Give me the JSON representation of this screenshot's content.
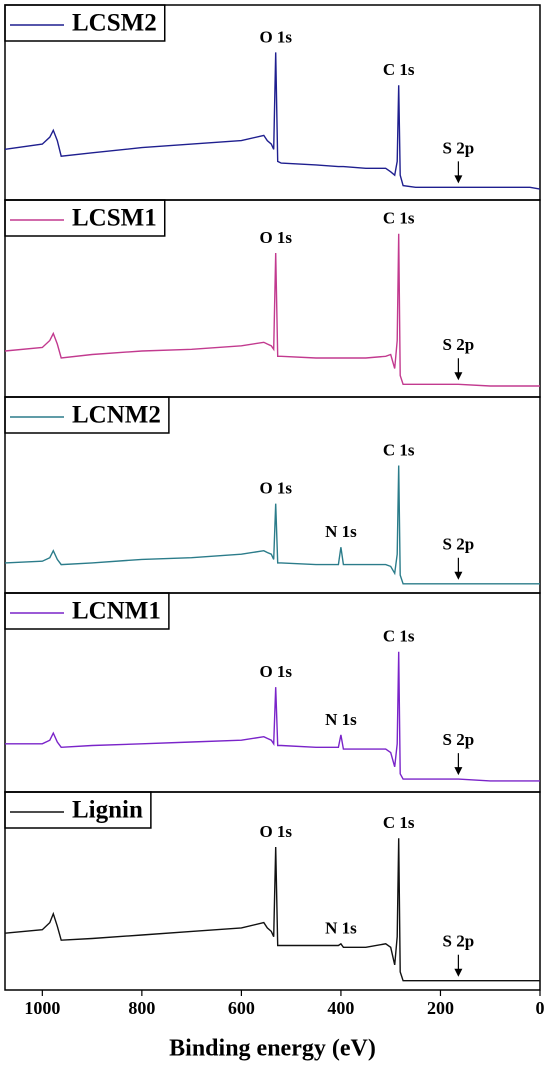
{
  "chart_data": [
    {
      "type": "line",
      "name": "LCSM2",
      "color": "#1f1f8f",
      "x": [
        1075,
        1000,
        985,
        978,
        970,
        962,
        900,
        800,
        700,
        600,
        555,
        548,
        540,
        535,
        531,
        527,
        520,
        450,
        405,
        400,
        395,
        350,
        310,
        300,
        292,
        287,
        284,
        281,
        275,
        250,
        200,
        164,
        100,
        20,
        0
      ],
      "values": [
        27,
        30,
        34,
        38,
        32,
        23,
        25,
        28,
        30,
        32,
        35,
        32,
        30,
        27,
        83,
        20,
        19,
        18,
        17,
        17,
        17,
        16,
        16,
        14,
        12,
        20,
        64,
        12,
        6,
        5,
        5,
        5,
        5,
        5,
        4
      ],
      "xlim": [
        1075,
        0
      ],
      "ylim": [
        0,
        100
      ],
      "annotations": [
        {
          "text": "O 1s",
          "x": 531
        },
        {
          "text": "C 1s",
          "x": 284
        },
        {
          "text": "S 2p",
          "x": 164,
          "arrow": true
        }
      ]
    },
    {
      "type": "line",
      "name": "LCSM1",
      "color": "#c23a8f",
      "x": [
        1075,
        1000,
        985,
        978,
        970,
        962,
        900,
        800,
        700,
        600,
        555,
        548,
        540,
        535,
        531,
        527,
        520,
        450,
        405,
        400,
        395,
        350,
        310,
        300,
        292,
        287,
        284,
        281,
        275,
        250,
        200,
        164,
        100,
        20,
        0
      ],
      "values": [
        24,
        26,
        30,
        34,
        28,
        20,
        22,
        24,
        25,
        27,
        29,
        28,
        27,
        25,
        80,
        21,
        21,
        20,
        20,
        20,
        20,
        20,
        21,
        22,
        14,
        30,
        91,
        10,
        5,
        5,
        5,
        5,
        4,
        4,
        4
      ],
      "xlim": [
        1075,
        0
      ],
      "ylim": [
        0,
        100
      ],
      "annotations": [
        {
          "text": "O 1s",
          "x": 531
        },
        {
          "text": "C 1s",
          "x": 284
        },
        {
          "text": "S 2p",
          "x": 164,
          "arrow": true
        }
      ]
    },
    {
      "type": "line",
      "name": "LCNM2",
      "color": "#2b7c8a",
      "x": [
        1075,
        1000,
        985,
        978,
        970,
        962,
        900,
        800,
        700,
        600,
        555,
        548,
        540,
        535,
        531,
        527,
        520,
        450,
        405,
        400,
        395,
        350,
        310,
        300,
        292,
        287,
        284,
        281,
        275,
        250,
        200,
        164,
        100,
        20,
        0
      ],
      "values": [
        15,
        16,
        18,
        22,
        17,
        14,
        15,
        17,
        18,
        20,
        22,
        21,
        20,
        17,
        49,
        15,
        15,
        14,
        14,
        24,
        14,
        14,
        14,
        13,
        9,
        20,
        71,
        8,
        3,
        3,
        3,
        3,
        3,
        3,
        3
      ],
      "xlim": [
        1075,
        0
      ],
      "ylim": [
        0,
        100
      ],
      "annotations": [
        {
          "text": "O 1s",
          "x": 531
        },
        {
          "text": "N 1s",
          "x": 400
        },
        {
          "text": "C 1s",
          "x": 284
        },
        {
          "text": "S 2p",
          "x": 164,
          "arrow": true
        }
      ]
    },
    {
      "type": "line",
      "name": "LCNM1",
      "color": "#7a24c9",
      "x": [
        1075,
        1000,
        985,
        978,
        970,
        962,
        900,
        800,
        700,
        600,
        555,
        548,
        540,
        535,
        531,
        527,
        520,
        450,
        405,
        400,
        395,
        350,
        310,
        300,
        292,
        287,
        284,
        281,
        275,
        250,
        200,
        164,
        100,
        20,
        0
      ],
      "values": [
        25,
        25,
        27,
        31,
        26,
        23,
        24,
        25,
        26,
        27,
        29,
        28,
        27,
        25,
        57,
        24,
        24,
        23,
        23,
        30,
        22,
        22,
        22,
        20,
        12,
        25,
        77,
        8,
        5,
        5,
        5,
        5,
        4,
        4,
        4
      ],
      "xlim": [
        1075,
        0
      ],
      "ylim": [
        0,
        100
      ],
      "annotations": [
        {
          "text": "O 1s",
          "x": 531
        },
        {
          "text": "N 1s",
          "x": 400
        },
        {
          "text": "C 1s",
          "x": 284
        },
        {
          "text": "S 2p",
          "x": 164,
          "arrow": true
        }
      ]
    },
    {
      "type": "line",
      "name": "Lignin",
      "color": "#111111",
      "x": [
        1075,
        1000,
        985,
        978,
        970,
        962,
        900,
        800,
        700,
        600,
        555,
        548,
        540,
        535,
        531,
        527,
        520,
        450,
        405,
        400,
        395,
        350,
        310,
        300,
        292,
        287,
        284,
        281,
        275,
        250,
        200,
        164,
        100,
        20,
        0
      ],
      "values": [
        30,
        32,
        36,
        41,
        34,
        26,
        27,
        29,
        31,
        33,
        36,
        33,
        31,
        28,
        79,
        23,
        23,
        23,
        23,
        24,
        22,
        22,
        24,
        22,
        12,
        28,
        84,
        8,
        3,
        3,
        3,
        3,
        3,
        3,
        3
      ],
      "xlim": [
        1075,
        0
      ],
      "ylim": [
        0,
        100
      ],
      "annotations": [
        {
          "text": "O 1s",
          "x": 531
        },
        {
          "text": "N 1s",
          "x": 400
        },
        {
          "text": "C 1s",
          "x": 284
        },
        {
          "text": "S 2p",
          "x": 164,
          "arrow": true
        }
      ],
      "xticks": [
        1000,
        800,
        600,
        400,
        200,
        0
      ],
      "xlabel": "Binding energy (eV)"
    }
  ]
}
